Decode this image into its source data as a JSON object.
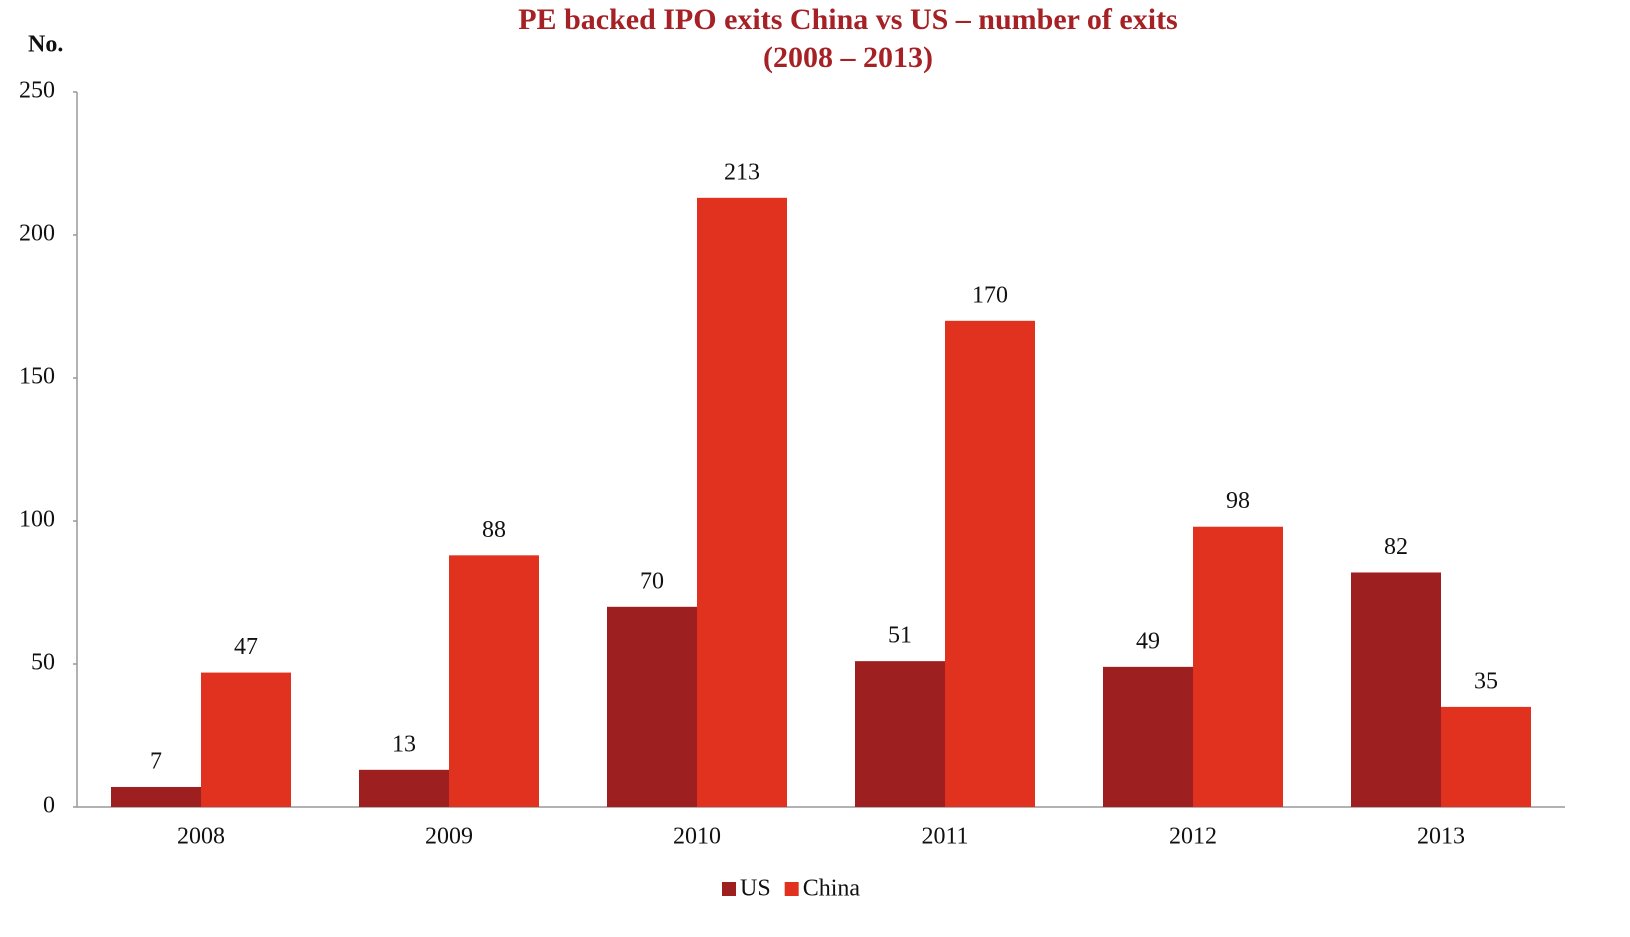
{
  "chart_data": {
    "type": "bar",
    "title": "PE backed IPO exits China vs US – number of exits",
    "subtitle": "(2008 – 2013)",
    "y_label": "No.",
    "categories": [
      "2008",
      "2009",
      "2010",
      "2011",
      "2012",
      "2013"
    ],
    "series": [
      {
        "name": "US",
        "color": "#9e1f20",
        "values": [
          7,
          13,
          70,
          51,
          49,
          82
        ]
      },
      {
        "name": "China",
        "color": "#e0321f",
        "values": [
          47,
          88,
          213,
          170,
          98,
          35
        ]
      }
    ],
    "ylim": [
      0,
      250
    ],
    "yticks": [
      0,
      50,
      100,
      150,
      200,
      250
    ],
    "grid": false,
    "legend": "bottom"
  }
}
